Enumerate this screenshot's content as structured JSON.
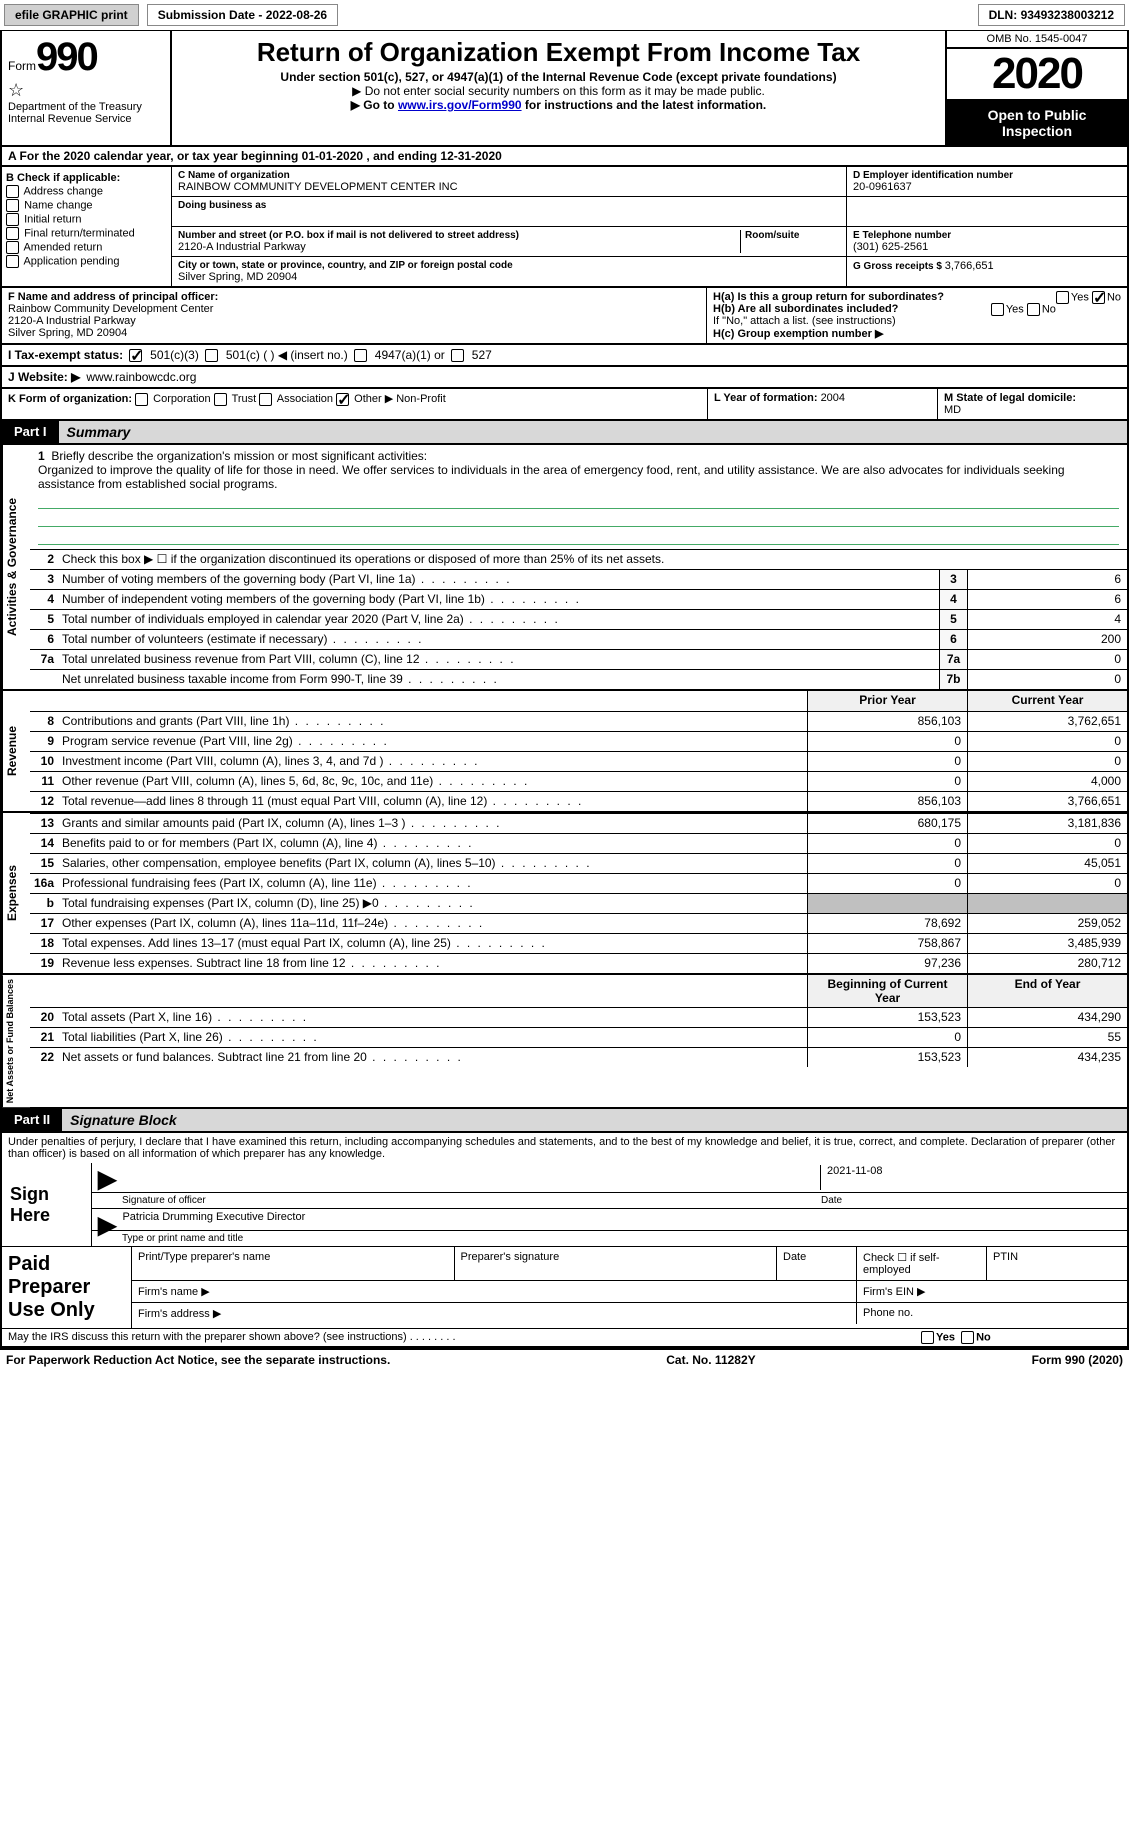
{
  "topbar": {
    "efile": "efile GRAPHIC print",
    "subdate_label": "Submission Date - ",
    "subdate": "2022-08-26",
    "dln_label": "DLN: ",
    "dln": "93493238003212"
  },
  "header": {
    "form_label": "Form",
    "form_num": "990",
    "dept1": "Department of the Treasury",
    "dept2": "Internal Revenue Service",
    "title": "Return of Organization Exempt From Income Tax",
    "sub1": "Under section 501(c), 527, or 4947(a)(1) of the Internal Revenue Code (except private foundations)",
    "sub2": "▶ Do not enter social security numbers on this form as it may be made public.",
    "sub3_pre": "▶ Go to ",
    "sub3_link": "www.irs.gov/Form990",
    "sub3_post": " for instructions and the latest information.",
    "omb": "OMB No. 1545-0047",
    "year": "2020",
    "inspect": "Open to Public Inspection"
  },
  "sectionA": {
    "text_pre": "A For the 2020 calendar year, or tax year beginning ",
    "begin": "01-01-2020",
    "mid": " , and ending ",
    "end": "12-31-2020"
  },
  "sectionB": {
    "label": "B Check if applicable:",
    "opts": [
      "Address change",
      "Name change",
      "Initial return",
      "Final return/terminated",
      "Amended return",
      "Application pending"
    ]
  },
  "sectionC": {
    "name_lbl": "C Name of organization",
    "name": "RAINBOW COMMUNITY DEVELOPMENT CENTER INC",
    "dba_lbl": "Doing business as",
    "addr_lbl": "Number and street (or P.O. box if mail is not delivered to street address)",
    "room_lbl": "Room/suite",
    "addr": "2120-A Industrial Parkway",
    "city_lbl": "City or town, state or province, country, and ZIP or foreign postal code",
    "city": "Silver Spring, MD  20904"
  },
  "sectionD": {
    "ein_lbl": "D Employer identification number",
    "ein": "20-0961637",
    "tel_lbl": "E Telephone number",
    "tel": "(301) 625-2561",
    "gross_lbl": "G Gross receipts $ ",
    "gross": "3,766,651"
  },
  "sectionF": {
    "lbl": "F Name and address of principal officer:",
    "l1": "Rainbow Community Development Center",
    "l2": "2120-A Industrial Parkway",
    "l3": "Silver Spring, MD  20904"
  },
  "sectionH": {
    "a_lbl": "H(a)  Is this a group return for subordinates?",
    "b_lbl": "H(b)  Are all subordinates included?",
    "b_note": "If \"No,\" attach a list. (see instructions)",
    "c_lbl": "H(c)  Group exemption number ▶",
    "yes": "Yes",
    "no": "No"
  },
  "sectionI": {
    "lbl": "I   Tax-exempt status:",
    "o1": "501(c)(3)",
    "o2": "501(c) (  ) ◀ (insert no.)",
    "o3": "4947(a)(1) or",
    "o4": "527"
  },
  "sectionJ": {
    "lbl": "J   Website: ▶",
    "val": "www.rainbowcdc.org"
  },
  "sectionK": {
    "lbl": "K Form of organization:",
    "o1": "Corporation",
    "o2": "Trust",
    "o3": "Association",
    "o4": "Other ▶",
    "o4v": "Non-Profit"
  },
  "sectionLM": {
    "l_lbl": "L Year of formation: ",
    "l_val": "2004",
    "m_lbl": "M State of legal domicile:",
    "m_val": "MD"
  },
  "part1": {
    "tab": "Part I",
    "title": "Summary"
  },
  "governance": {
    "vtab": "Activities & Governance",
    "l1_lbl": "Briefly describe the organization's mission or most significant activities:",
    "l1_text": "Organized to improve the quality of life for those in need. We offer services to individuals in the area of emergency food, rent, and utility assistance. We are also advocates for individuals seeking assistance from established social programs.",
    "l2": "Check this box ▶ ☐  if the organization discontinued its operations or disposed of more than 25% of its net assets.",
    "rows": [
      {
        "n": "3",
        "d": "Number of voting members of the governing body (Part VI, line 1a)",
        "c": "3",
        "v": "6"
      },
      {
        "n": "4",
        "d": "Number of independent voting members of the governing body (Part VI, line 1b)",
        "c": "4",
        "v": "6"
      },
      {
        "n": "5",
        "d": "Total number of individuals employed in calendar year 2020 (Part V, line 2a)",
        "c": "5",
        "v": "4"
      },
      {
        "n": "6",
        "d": "Total number of volunteers (estimate if necessary)",
        "c": "6",
        "v": "200"
      },
      {
        "n": "7a",
        "d": "Total unrelated business revenue from Part VIII, column (C), line 12",
        "c": "7a",
        "v": "0"
      },
      {
        "n": "",
        "d": "Net unrelated business taxable income from Form 990-T, line 39",
        "c": "7b",
        "v": "0"
      }
    ]
  },
  "revenue": {
    "vtab": "Revenue",
    "hdr_prior": "Prior Year",
    "hdr_curr": "Current Year",
    "rows": [
      {
        "n": "8",
        "d": "Contributions and grants (Part VIII, line 1h)",
        "p": "856,103",
        "c": "3,762,651"
      },
      {
        "n": "9",
        "d": "Program service revenue (Part VIII, line 2g)",
        "p": "0",
        "c": "0"
      },
      {
        "n": "10",
        "d": "Investment income (Part VIII, column (A), lines 3, 4, and 7d )",
        "p": "0",
        "c": "0"
      },
      {
        "n": "11",
        "d": "Other revenue (Part VIII, column (A), lines 5, 6d, 8c, 9c, 10c, and 11e)",
        "p": "0",
        "c": "4,000"
      },
      {
        "n": "12",
        "d": "Total revenue—add lines 8 through 11 (must equal Part VIII, column (A), line 12)",
        "p": "856,103",
        "c": "3,766,651"
      }
    ]
  },
  "expenses": {
    "vtab": "Expenses",
    "rows": [
      {
        "n": "13",
        "d": "Grants and similar amounts paid (Part IX, column (A), lines 1–3 )",
        "p": "680,175",
        "c": "3,181,836"
      },
      {
        "n": "14",
        "d": "Benefits paid to or for members (Part IX, column (A), line 4)",
        "p": "0",
        "c": "0"
      },
      {
        "n": "15",
        "d": "Salaries, other compensation, employee benefits (Part IX, column (A), lines 5–10)",
        "p": "0",
        "c": "45,051"
      },
      {
        "n": "16a",
        "d": "Professional fundraising fees (Part IX, column (A), line 11e)",
        "p": "0",
        "c": "0"
      },
      {
        "n": "b",
        "d": "Total fundraising expenses (Part IX, column (D), line 25) ▶0",
        "p": "GREY",
        "c": "GREY"
      },
      {
        "n": "17",
        "d": "Other expenses (Part IX, column (A), lines 11a–11d, 11f–24e)",
        "p": "78,692",
        "c": "259,052"
      },
      {
        "n": "18",
        "d": "Total expenses. Add lines 13–17 (must equal Part IX, column (A), line 25)",
        "p": "758,867",
        "c": "3,485,939"
      },
      {
        "n": "19",
        "d": "Revenue less expenses. Subtract line 18 from line 12",
        "p": "97,236",
        "c": "280,712"
      }
    ]
  },
  "netassets": {
    "vtab": "Net Assets or Fund Balances",
    "hdr_begin": "Beginning of Current Year",
    "hdr_end": "End of Year",
    "rows": [
      {
        "n": "20",
        "d": "Total assets (Part X, line 16)",
        "p": "153,523",
        "c": "434,290"
      },
      {
        "n": "21",
        "d": "Total liabilities (Part X, line 26)",
        "p": "0",
        "c": "55"
      },
      {
        "n": "22",
        "d": "Net assets or fund balances. Subtract line 21 from line 20",
        "p": "153,523",
        "c": "434,235"
      }
    ]
  },
  "part2": {
    "tab": "Part II",
    "title": "Signature Block",
    "penalty": "Under penalties of perjury, I declare that I have examined this return, including accompanying schedules and statements, and to the best of my knowledge and belief, it is true, correct, and complete. Declaration of preparer (other than officer) is based on all information of which preparer has any knowledge."
  },
  "sign": {
    "label": "Sign Here",
    "sig_lbl": "Signature of officer",
    "date_lbl": "Date",
    "date": "2021-11-08",
    "name": "Patricia Drumming  Executive Director",
    "name_lbl": "Type or print name and title"
  },
  "paid": {
    "label": "Paid Preparer Use Only",
    "h1": "Print/Type preparer's name",
    "h2": "Preparer's signature",
    "h3": "Date",
    "h4": "Check ☐ if self-employed",
    "h5": "PTIN",
    "firm_name": "Firm's name    ▶",
    "firm_ein": "Firm's EIN ▶",
    "firm_addr": "Firm's address ▶",
    "phone": "Phone no."
  },
  "footer": {
    "discuss": "May the IRS discuss this return with the preparer shown above? (see instructions)",
    "yes": "Yes",
    "no": "No",
    "pra": "For Paperwork Reduction Act Notice, see the separate instructions.",
    "cat": "Cat. No. 11282Y",
    "form": "Form 990 (2020)"
  }
}
